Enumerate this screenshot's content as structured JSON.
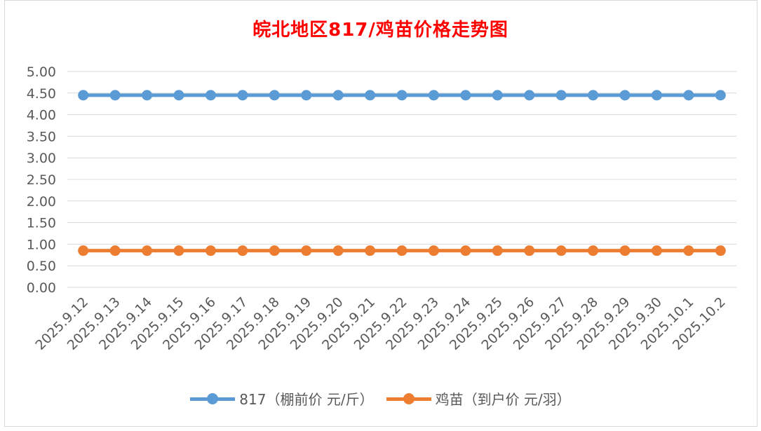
{
  "chart_data": {
    "type": "line",
    "title": "皖北地区817/鸡苗价格走势图",
    "categories": [
      "2025.9.12",
      "2025.9.13",
      "2025.9.14",
      "2025.9.15",
      "2025.9.16",
      "2025.9.17",
      "2025.9.18",
      "2025.9.19",
      "2025.9.20",
      "2025.9.21",
      "2025.9.22",
      "2025.9.23",
      "2025.9.24",
      "2025.9.25",
      "2025.9.26",
      "2025.9.27",
      "2025.9.28",
      "2025.9.29",
      "2025.9.30",
      "2025.10.1",
      "2025.10.2"
    ],
    "series": [
      {
        "name": "817（棚前价 元/斤）",
        "color": "#5b9bd5",
        "values": [
          4.45,
          4.45,
          4.45,
          4.45,
          4.45,
          4.45,
          4.45,
          4.45,
          4.45,
          4.45,
          4.45,
          4.45,
          4.45,
          4.45,
          4.45,
          4.45,
          4.45,
          4.45,
          4.45,
          4.45,
          4.45
        ]
      },
      {
        "name": "鸡苗（到户价 元/羽）",
        "color": "#ed7d31",
        "values": [
          0.85,
          0.85,
          0.85,
          0.85,
          0.85,
          0.85,
          0.85,
          0.85,
          0.85,
          0.85,
          0.85,
          0.85,
          0.85,
          0.85,
          0.85,
          0.85,
          0.85,
          0.85,
          0.85,
          0.85,
          0.85
        ]
      }
    ],
    "ylim": [
      0,
      5
    ],
    "yticks": [
      "0.00",
      "0.50",
      "1.00",
      "1.50",
      "2.00",
      "2.50",
      "3.00",
      "3.50",
      "4.00",
      "4.50",
      "5.00"
    ],
    "grid": true,
    "legend_position": "bottom"
  }
}
